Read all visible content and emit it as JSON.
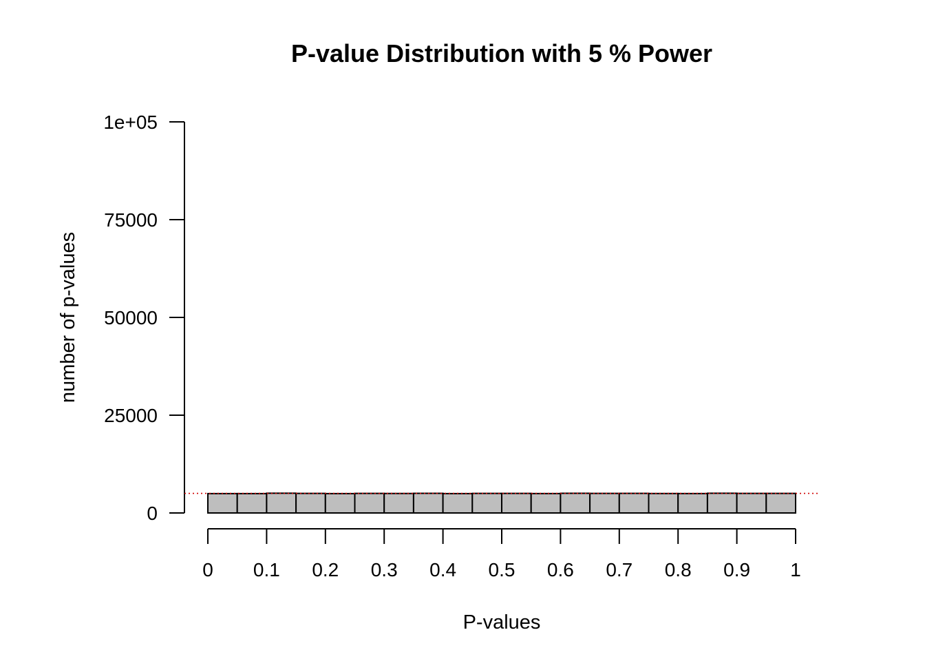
{
  "chart_data": {
    "type": "bar",
    "title": "P-value Distribution with 5 % Power",
    "xlabel": "P-values",
    "ylabel": "number of p-values",
    "bin_edges": [
      0,
      0.05,
      0.1,
      0.15,
      0.2,
      0.25,
      0.3,
      0.35,
      0.4,
      0.45,
      0.5,
      0.55,
      0.6,
      0.65,
      0.7,
      0.75,
      0.8,
      0.85,
      0.9,
      0.95,
      1.0
    ],
    "values": [
      4950,
      4950,
      5050,
      5000,
      4950,
      5000,
      4980,
      5020,
      4950,
      5000,
      5000,
      4960,
      5030,
      5000,
      5010,
      4970,
      4960,
      5040,
      5000,
      5000
    ],
    "ylim": [
      0,
      100000
    ],
    "xlim": [
      0,
      1
    ],
    "yticks": [
      0,
      25000,
      50000,
      75000,
      100000
    ],
    "ytick_labels": [
      "0",
      "25000",
      "50000",
      "75000",
      "1e+05"
    ],
    "xticks": [
      0,
      0.1,
      0.2,
      0.3,
      0.4,
      0.5,
      0.6,
      0.7,
      0.8,
      0.9,
      1
    ],
    "xtick_labels": [
      "0",
      "0.1",
      "0.2",
      "0.3",
      "0.4",
      "0.5",
      "0.6",
      "0.7",
      "0.8",
      "0.9",
      "1"
    ],
    "reference_line": {
      "y": 5000,
      "color": "#d00000",
      "style": "dotted"
    },
    "bar_color": "#bebebe",
    "grid": false,
    "legend": "none"
  }
}
